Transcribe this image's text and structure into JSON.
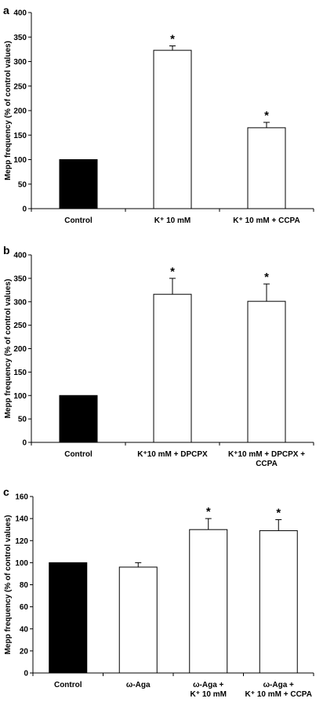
{
  "chart_data": [
    {
      "panel": "a",
      "type": "bar",
      "ylabel": "Mepp frequency (% of control values)",
      "ylim": [
        0,
        400
      ],
      "yticks": [
        0,
        50,
        100,
        150,
        200,
        250,
        300,
        350,
        400
      ],
      "categories": [
        [
          "Control"
        ],
        [
          "K⁺ 10 mM"
        ],
        [
          "K⁺ 10 mM + CCPA"
        ]
      ],
      "values": [
        100,
        323,
        165
      ],
      "errors": [
        0,
        9,
        11
      ],
      "fills": [
        "#000000",
        "#ffffff",
        "#ffffff"
      ],
      "significance": [
        "",
        "*",
        "*"
      ]
    },
    {
      "panel": "b",
      "type": "bar",
      "ylabel": "Mepp frequency (% of control values)",
      "ylim": [
        0,
        400
      ],
      "yticks": [
        0,
        50,
        100,
        150,
        200,
        250,
        300,
        350,
        400
      ],
      "categories": [
        [
          "Control"
        ],
        [
          "K⁺10 mM + DPCPX"
        ],
        [
          "K⁺10 mM + DPCPX +",
          "CCPA"
        ]
      ],
      "values": [
        100,
        316,
        301
      ],
      "errors": [
        0,
        34,
        37
      ],
      "fills": [
        "#000000",
        "#ffffff",
        "#ffffff"
      ],
      "significance": [
        "",
        "*",
        "*"
      ]
    },
    {
      "panel": "c",
      "type": "bar",
      "ylabel": "Mepp frequency (% of control values)",
      "ylim": [
        0,
        160
      ],
      "yticks": [
        0,
        20,
        40,
        60,
        80,
        100,
        120,
        140,
        160
      ],
      "categories": [
        [
          "Control"
        ],
        [
          "ω-Aga"
        ],
        [
          "ω-Aga +",
          "K⁺ 10 mM"
        ],
        [
          "ω-Aga +",
          "K⁺ 10 mM + CCPA"
        ]
      ],
      "values": [
        100,
        96,
        130,
        129
      ],
      "errors": [
        0,
        4,
        10,
        10
      ],
      "fills": [
        "#000000",
        "#ffffff",
        "#ffffff",
        "#ffffff"
      ],
      "significance": [
        "",
        "",
        "*",
        "*"
      ]
    }
  ]
}
